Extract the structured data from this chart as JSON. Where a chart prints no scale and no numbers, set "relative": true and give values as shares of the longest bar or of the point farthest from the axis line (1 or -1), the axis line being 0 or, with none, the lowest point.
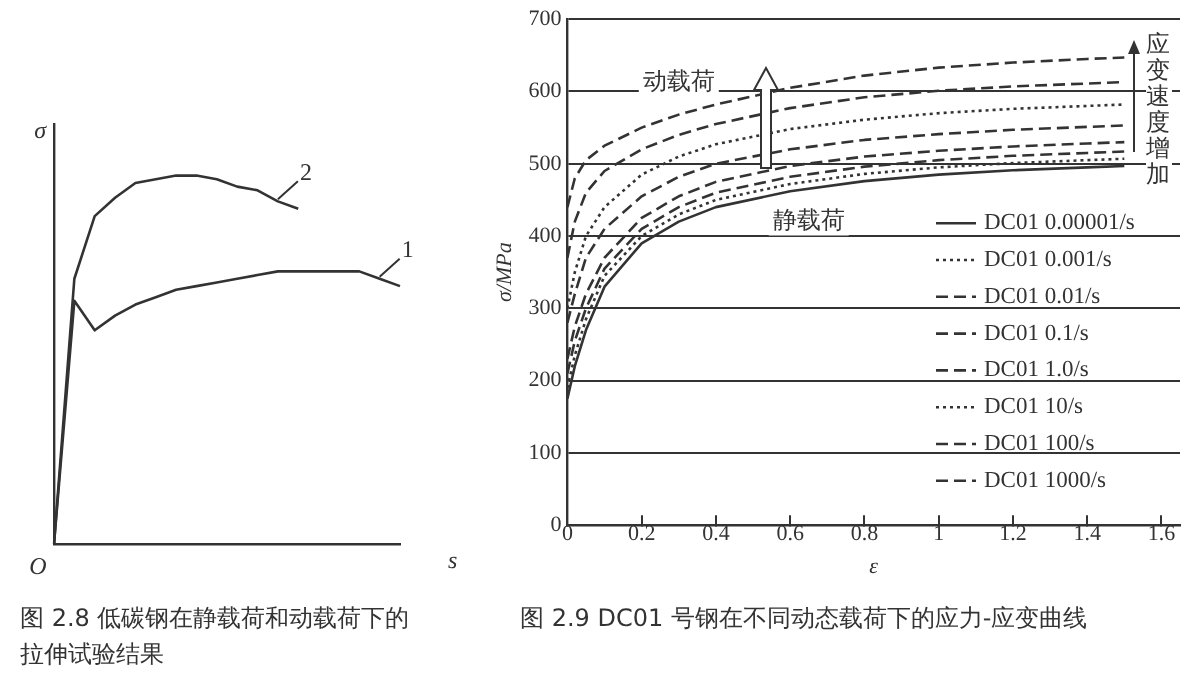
{
  "chart_data": [
    {
      "type": "line",
      "title": "图 2.8 低碳钢在静载荷和动载荷下的拉伸试验结果",
      "xlabel": "s",
      "ylabel": "σ",
      "annotations": [
        "O"
      ],
      "relative": true,
      "grid": false,
      "marker": "none",
      "tick_labels": false,
      "categories": [
        null,
        null,
        null,
        null,
        null,
        null,
        null,
        null,
        null,
        null,
        null,
        null,
        null,
        null,
        null,
        null,
        null,
        null
      ],
      "series": [
        {
          "name": "1",
          "color": "#333333",
          "line_style": "solid",
          "values": [
            0,
            0.66,
            0.58,
            0.62,
            0.65,
            0.67,
            0.69,
            0.7,
            0.71,
            0.72,
            0.73,
            0.74,
            0.74,
            0.74,
            0.74,
            0.74,
            0.72,
            0.7
          ]
        },
        {
          "name": "2",
          "color": "#333333",
          "line_style": "solid",
          "values": [
            0,
            0.72,
            0.89,
            0.94,
            0.98,
            0.99,
            1,
            1,
            0.99,
            0.97,
            0.96,
            0.93,
            0.91,
            null,
            null,
            null,
            null,
            null
          ]
        }
      ]
    },
    {
      "type": "line",
      "title": "图 2.9 DC01 号钢在不同动态载荷下的应力-应变曲线",
      "xlabel": "ε",
      "ylabel": "σ/MPa",
      "annotations": [
        "动载荷",
        "静载荷",
        "应变速度增加"
      ],
      "grid": "y",
      "legend": "right",
      "marker": "none",
      "x": [
        0,
        0.02,
        0.05,
        0.1,
        0.2,
        0.3,
        0.4,
        0.6,
        0.8,
        1.0,
        1.2,
        1.4,
        1.5
      ],
      "xlim": [
        0,
        1.65
      ],
      "xticks": [
        0,
        0.2,
        0.4,
        0.6,
        0.8,
        1,
        1.2,
        1.4,
        1.6
      ],
      "ylim": [
        0,
        700
      ],
      "yticks": [
        0,
        100,
        200,
        300,
        400,
        500,
        600,
        700
      ],
      "series": [
        {
          "name": "DC01 0.00001/s",
          "color": "#333333",
          "line_style": "solid",
          "values": [
            175,
            220,
            270,
            330,
            390,
            420,
            440,
            462,
            476,
            485,
            491,
            495,
            497
          ]
        },
        {
          "name": "DC01 0.001/s",
          "color": "#333333",
          "line_style": "dotted",
          "values": [
            190,
            235,
            285,
            345,
            400,
            430,
            450,
            472,
            486,
            495,
            501,
            505,
            507
          ]
        },
        {
          "name": "DC01 0.01/s",
          "color": "#333333",
          "line_style": "dashed",
          "values": [
            210,
            255,
            300,
            355,
            410,
            440,
            460,
            482,
            496,
            505,
            511,
            515,
            517
          ]
        },
        {
          "name": "DC01 0.1/s",
          "color": "#333333",
          "line_style": "dashed",
          "values": [
            230,
            275,
            320,
            370,
            425,
            455,
            475,
            497,
            510,
            518,
            524,
            528,
            530
          ]
        },
        {
          "name": "DC01 1.0/s",
          "color": "#333333",
          "line_style": "dashed",
          "values": [
            280,
            320,
            370,
            410,
            455,
            482,
            500,
            520,
            533,
            541,
            547,
            551,
            553
          ]
        },
        {
          "name": "DC01 10/s",
          "color": "#333333",
          "line_style": "dotted",
          "values": [
            300,
            350,
            400,
            440,
            485,
            510,
            527,
            548,
            561,
            570,
            576,
            580,
            582
          ]
        },
        {
          "name": "DC01 100/s",
          "color": "#333333",
          "line_style": "dashed",
          "values": [
            370,
            420,
            460,
            490,
            520,
            540,
            555,
            577,
            592,
            601,
            607,
            611,
            613
          ]
        },
        {
          "name": "DC01 1000/s",
          "color": "#333333",
          "line_style": "dashed",
          "values": [
            440,
            480,
            505,
            525,
            550,
            568,
            582,
            605,
            622,
            633,
            640,
            645,
            647
          ]
        }
      ]
    }
  ]
}
